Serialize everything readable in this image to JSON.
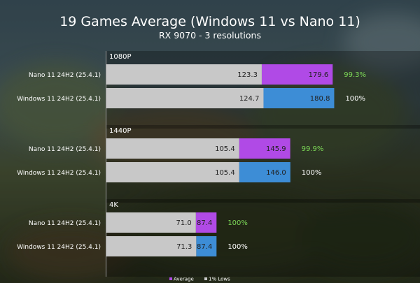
{
  "chart_data": {
    "type": "bar",
    "orientation": "horizontal",
    "stacked": "overlay",
    "title": "19 Games Average (Windows 11 vs Nano 11)",
    "subtitle": "RX 9070 - 3 resolutions",
    "xlim": [
      0,
      190
    ],
    "groups": [
      {
        "label": "1080P",
        "rows": [
          {
            "label": "Nano 11 24H2 (25.4.1)",
            "average": 179.6,
            "lows": 123.3,
            "percent": "99.3%",
            "highlight": true
          },
          {
            "label": "Windows 11 24H2 (25.4.1)",
            "average": 180.8,
            "lows": 124.7,
            "percent": "100%",
            "highlight": false
          }
        ]
      },
      {
        "label": "1440P",
        "rows": [
          {
            "label": "Nano 11 24H2 (25.4.1)",
            "average": 145.9,
            "lows": 105.4,
            "percent": "99.9%",
            "highlight": true
          },
          {
            "label": "Windows 11 24H2 (25.4.1)",
            "average": 146.0,
            "lows": 105.4,
            "percent": "100%",
            "highlight": false
          }
        ]
      },
      {
        "label": "4K",
        "rows": [
          {
            "label": "Nano 11 24H2 (25.4.1)",
            "average": 87.4,
            "lows": 71.0,
            "percent": "100%",
            "highlight": true
          },
          {
            "label": "Windows 11 24H2 (25.4.1)",
            "average": 87.4,
            "lows": 71.3,
            "percent": "100%",
            "highlight": false
          }
        ]
      }
    ],
    "legend": [
      {
        "label": "Average",
        "color": "#b04ae6"
      },
      {
        "label": "1% Lows",
        "color": "#c8c8c8"
      }
    ],
    "colors": {
      "nano_average": "#b04ae6",
      "windows_average": "#3d8dd6",
      "lows": "#c8c8c8",
      "highlight_percent": "#7dd957",
      "normal_percent": "#ffffff"
    }
  }
}
